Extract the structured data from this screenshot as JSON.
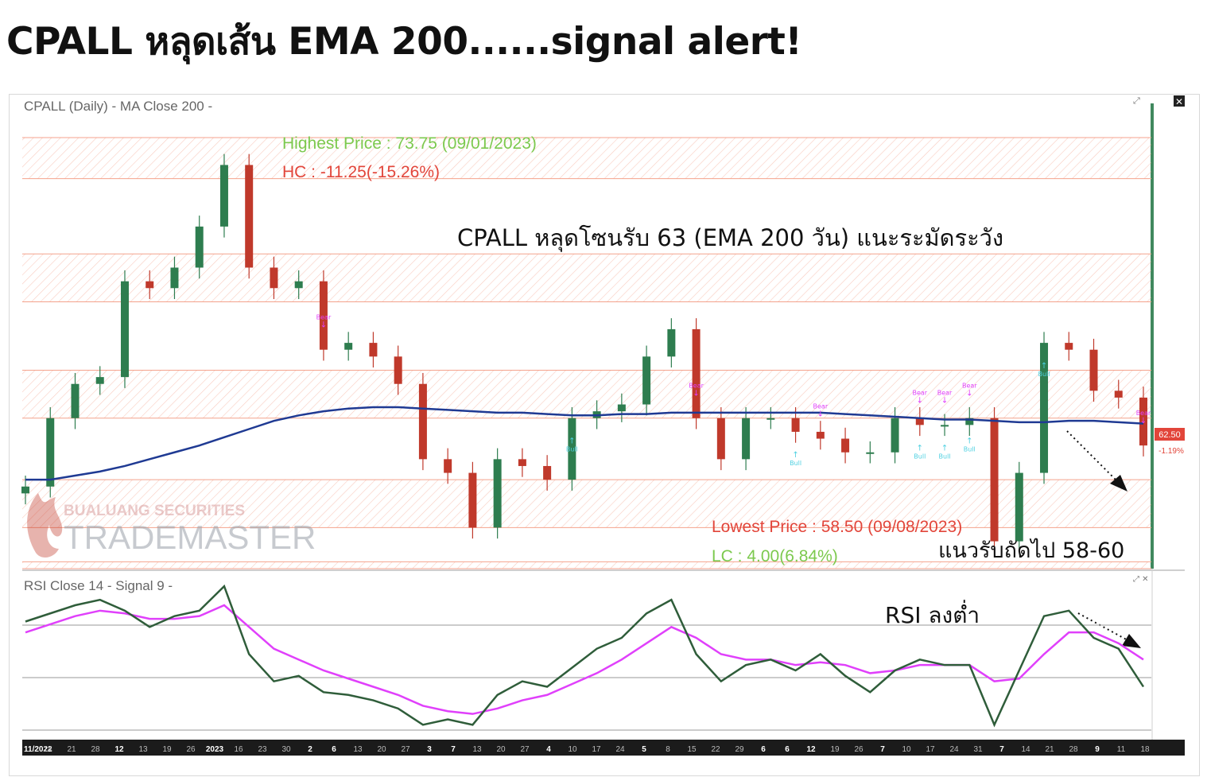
{
  "headline": "CPALL หลุดเส้น EMA 200......signal alert!",
  "chart_data": [
    {
      "type": "line",
      "panel": "price",
      "symbol": "CPALL",
      "title": "CPALL (Daily) - MA  Close 200 -",
      "x": [
        "2022-11-07",
        "2022-11-14",
        "2022-11-21",
        "2022-11-28",
        "2022-12-05",
        "2022-12-12",
        "2022-12-19",
        "2022-12-26",
        "2023-01-02",
        "2023-01-09",
        "2023-01-16",
        "2023-01-23",
        "2023-01-30",
        "2023-02-06",
        "2023-02-13",
        "2023-02-20",
        "2023-02-27",
        "2023-03-06",
        "2023-03-13",
        "2023-03-20",
        "2023-03-27",
        "2023-04-03",
        "2023-04-10",
        "2023-04-17",
        "2023-04-24",
        "2023-05-01",
        "2023-05-08",
        "2023-05-15",
        "2023-05-22",
        "2023-05-29",
        "2023-06-05",
        "2023-06-12",
        "2023-06-19",
        "2023-06-26",
        "2023-07-03",
        "2023-07-10",
        "2023-07-17",
        "2023-07-24",
        "2023-07-31",
        "2023-08-07",
        "2023-08-14",
        "2023-08-21",
        "2023-08-28",
        "2023-09-04",
        "2023-09-11",
        "2023-09-18"
      ],
      "series": [
        {
          "name": "Close",
          "values": [
            61.0,
            63.5,
            64.75,
            65.0,
            68.5,
            68.25,
            69.0,
            70.5,
            72.75,
            69.0,
            68.25,
            68.5,
            66.0,
            66.25,
            65.75,
            64.75,
            62.0,
            61.5,
            59.5,
            62.0,
            61.75,
            61.25,
            63.5,
            63.75,
            64.0,
            65.75,
            66.75,
            63.5,
            62.0,
            63.5,
            63.5,
            63.0,
            62.75,
            62.25,
            62.25,
            63.5,
            63.25,
            63.25,
            63.5,
            59.0,
            61.5,
            66.25,
            66.0,
            64.5,
            64.25,
            62.5
          ]
        },
        {
          "name": "MA 200",
          "values": [
            61.25,
            61.25,
            61.4,
            61.55,
            61.75,
            62.0,
            62.25,
            62.5,
            62.8,
            63.1,
            63.4,
            63.6,
            63.75,
            63.85,
            63.9,
            63.9,
            63.85,
            63.8,
            63.75,
            63.7,
            63.7,
            63.65,
            63.6,
            63.6,
            63.65,
            63.65,
            63.7,
            63.7,
            63.7,
            63.7,
            63.7,
            63.7,
            63.7,
            63.65,
            63.6,
            63.55,
            63.5,
            63.45,
            63.45,
            63.4,
            63.35,
            63.35,
            63.4,
            63.4,
            63.35,
            63.3
          ]
        }
      ],
      "ylim": [
        58.0,
        75.0
      ],
      "last_price_label": "62.50",
      "last_change_label": "-1.19%",
      "highest": {
        "label": "Highest Price : 73.75 (09/01/2023)",
        "value": 73.75,
        "date": "09/01/2023"
      },
      "hc": {
        "label": "HC : -11.25(-15.26%)"
      },
      "lowest": {
        "label": "Lowest Price : 58.50 (09/08/2023)",
        "value": 58.5,
        "date": "09/08/2023"
      },
      "lc": {
        "label": "LC : 4.00(6.84%)"
      },
      "zones": [
        [
          72.25,
          73.75
        ],
        [
          67.75,
          69.5
        ],
        [
          63.5,
          65.25
        ],
        [
          59.5,
          61.25
        ],
        [
          58.0,
          58.25
        ]
      ],
      "annotations": [
        {
          "text": "CPALL หลุดโซนรับ 63 (EMA 200 วัน) แนะระมัดระวัง"
        },
        {
          "text": "แนวรับถัดไป 58-60"
        }
      ],
      "signals": [
        {
          "type": "Bear",
          "x": "2023-01-30"
        },
        {
          "type": "Bear",
          "x": "2023-05-15"
        },
        {
          "type": "Bear",
          "x": "2023-06-19"
        },
        {
          "type": "Bear",
          "x": "2023-07-17"
        },
        {
          "type": "Bear",
          "x": "2023-07-24"
        },
        {
          "type": "Bear",
          "x": "2023-07-31"
        },
        {
          "type": "Bear",
          "x": "2023-09-18"
        },
        {
          "type": "Bull",
          "x": "2023-04-10"
        },
        {
          "type": "Bull",
          "x": "2023-06-12"
        },
        {
          "type": "Bull",
          "x": "2023-07-17"
        },
        {
          "type": "Bull",
          "x": "2023-07-24"
        },
        {
          "type": "Bull",
          "x": "2023-07-31"
        },
        {
          "type": "Bull",
          "x": "2023-08-21"
        }
      ]
    },
    {
      "type": "line",
      "panel": "rsi",
      "title": "RSI  Close 14 - Signal  9 -",
      "series": [
        {
          "name": "RSI",
          "values": [
            62,
            65,
            68,
            70,
            66,
            60,
            64,
            66,
            75,
            50,
            40,
            42,
            36,
            35,
            33,
            30,
            24,
            26,
            24,
            35,
            40,
            38,
            45,
            52,
            56,
            65,
            70,
            50,
            40,
            46,
            48,
            44,
            50,
            42,
            36,
            44,
            48,
            46,
            46,
            24,
            44,
            64,
            66,
            56,
            52,
            38
          ]
        },
        {
          "name": "Signal",
          "values": [
            58,
            61,
            64,
            66,
            65,
            63,
            63,
            64,
            68,
            60,
            52,
            48,
            44,
            41,
            38,
            35,
            31,
            29,
            28,
            30,
            33,
            35,
            39,
            43,
            48,
            54,
            60,
            56,
            50,
            48,
            48,
            46,
            47,
            46,
            43,
            44,
            46,
            46,
            46,
            40,
            41,
            50,
            58,
            58,
            54,
            48
          ]
        }
      ],
      "ylim": [
        20,
        80
      ]
    }
  ],
  "rsi_annotation": "RSI ลงต่ำ",
  "x_ticks": [
    "11/2022",
    "14",
    "21",
    "28",
    "12",
    "13",
    "19",
    "26",
    "2023",
    "16",
    "23",
    "30",
    "2",
    "6",
    "13",
    "20",
    "27",
    "3",
    "7",
    "13",
    "20",
    "27",
    "4",
    "10",
    "17",
    "24",
    "5",
    "8",
    "15",
    "22",
    "29",
    "6",
    "6",
    "12",
    "19",
    "26",
    "7",
    "10",
    "17",
    "24",
    "31",
    "7",
    "14",
    "21",
    "28",
    "9",
    "11",
    "18"
  ],
  "watermark": {
    "line1": "BUALUANG SECURITIES",
    "line2": "TRADEMASTER"
  },
  "colors": {
    "up": "#2e7d4f",
    "down": "#c0392b",
    "ma": "#1f3a93",
    "rsi": "#2f5d3a",
    "signal": "#e040fb",
    "zone": "#f4a28c",
    "bear": "#e040fb",
    "bull": "#4dd0e1"
  }
}
